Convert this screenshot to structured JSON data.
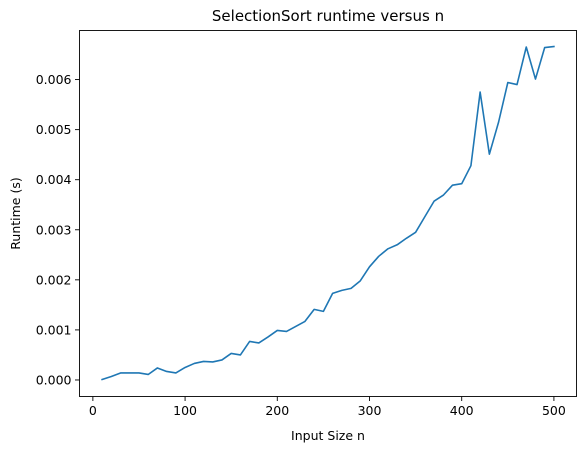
{
  "chart_data": {
    "type": "line",
    "title": "SelectionSort runtime versus n",
    "xlabel": "Input Size n",
    "ylabel": "Runtime (s)",
    "xlim": [
      -14.5,
      524.5
    ],
    "ylim": [
      -0.00033,
      0.00698
    ],
    "xticks": [
      0,
      100,
      200,
      300,
      400,
      500
    ],
    "xtick_labels": [
      "0",
      "100",
      "200",
      "300",
      "400",
      "500"
    ],
    "yticks": [
      0.0,
      0.001,
      0.002,
      0.003,
      0.004,
      0.005,
      0.006
    ],
    "ytick_labels": [
      "0.000",
      "0.001",
      "0.002",
      "0.003",
      "0.004",
      "0.005",
      "0.006"
    ],
    "grid": false,
    "legend": "none",
    "series": [
      {
        "color": "#1f77b4",
        "x": [
          10,
          20,
          30,
          40,
          50,
          60,
          70,
          80,
          90,
          100,
          110,
          120,
          130,
          140,
          150,
          160,
          170,
          180,
          190,
          200,
          210,
          220,
          230,
          240,
          250,
          260,
          270,
          280,
          290,
          300,
          310,
          320,
          330,
          340,
          350,
          360,
          370,
          380,
          390,
          400,
          410,
          420,
          430,
          440,
          450,
          460,
          470,
          480,
          490,
          500
        ],
        "y": [
          1e-05,
          7e-05,
          0.00014,
          0.00014,
          0.00014,
          0.00011,
          0.00024,
          0.00017,
          0.00014,
          0.00025,
          0.00033,
          0.00037,
          0.00036,
          0.0004,
          0.00053,
          0.0005,
          0.00077,
          0.00074,
          0.00086,
          0.00099,
          0.00097,
          0.00107,
          0.00117,
          0.00141,
          0.00137,
          0.00173,
          0.00179,
          0.00183,
          0.00198,
          0.00226,
          0.00247,
          0.00262,
          0.0027,
          0.00283,
          0.00295,
          0.00326,
          0.00357,
          0.00369,
          0.00389,
          0.00392,
          0.00428,
          0.00575,
          0.00451,
          0.00515,
          0.00594,
          0.0059,
          0.00665,
          0.00601,
          0.00664,
          0.00666
        ]
      }
    ]
  }
}
